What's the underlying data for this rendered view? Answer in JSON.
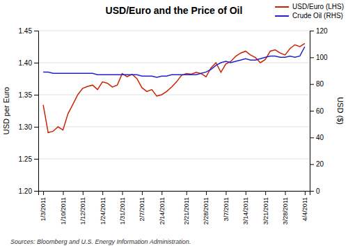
{
  "chart_data": {
    "type": "line",
    "title": "USD/Euro and the Price of Oil",
    "y_label": "USD per Euro",
    "y2_label": "USD ($)",
    "annotation": "Sources: Bloomberg and U.S. Energy Information Administration.",
    "categories": [
      "1/3/2011",
      null,
      null,
      null,
      "1/10/2011",
      null,
      null,
      null,
      "1/12/2011",
      null,
      null,
      null,
      "1/24/2011",
      null,
      null,
      null,
      "1/31/2011",
      null,
      null,
      null,
      "2/7/2011",
      null,
      null,
      null,
      "2/14/2011",
      null,
      null,
      null,
      null,
      "2/21/2011",
      null,
      null,
      null,
      "2/28/2011",
      null,
      null,
      null,
      "3/7/2011",
      null,
      null,
      null,
      "3/14/2011",
      null,
      null,
      null,
      "3/21/2011",
      null,
      null,
      null,
      "3/28/2011",
      null,
      null,
      null,
      "4/4/2011"
    ],
    "series": [
      {
        "name": "USD/Euro (LHS)",
        "color": "#cc2200",
        "axis": "y",
        "values": [
          1.334,
          1.291,
          1.293,
          1.3,
          1.295,
          1.32,
          1.335,
          1.35,
          1.36,
          1.363,
          1.365,
          1.358,
          1.37,
          1.368,
          1.362,
          1.365,
          1.383,
          1.378,
          1.382,
          1.375,
          1.361,
          1.355,
          1.358,
          1.348,
          1.35,
          1.355,
          1.362,
          1.37,
          1.38,
          1.383,
          1.382,
          1.385,
          1.383,
          1.378,
          1.392,
          1.4,
          1.385,
          1.398,
          1.402,
          1.41,
          1.415,
          1.418,
          1.412,
          1.408,
          1.4,
          1.405,
          1.418,
          1.42,
          1.415,
          1.412,
          1.422,
          1.428,
          1.425,
          1.43
        ]
      },
      {
        "name": "Crude Oil (RHS)",
        "color": "#2222cc",
        "axis": "y2",
        "values": [
          89,
          89,
          88,
          88,
          88,
          88,
          88,
          88,
          88,
          88,
          88,
          87,
          87,
          87,
          87,
          87,
          87,
          87,
          87,
          87,
          86,
          86,
          86,
          85,
          86,
          86,
          87,
          87,
          87,
          87,
          87,
          87,
          88,
          89,
          91,
          94,
          96,
          97,
          96,
          97,
          98,
          99,
          98,
          98,
          99,
          100,
          101,
          101,
          100,
          100,
          101,
          100,
          101,
          108
        ]
      }
    ],
    "ylim": [
      1.2,
      1.45
    ],
    "yticks": [
      {
        "value": 1.2,
        "label": "1.20"
      },
      1.25,
      {
        "value": 1.3,
        "label": "1.30"
      },
      1.35,
      {
        "value": 1.4,
        "label": "1.40"
      },
      1.45
    ],
    "y2lim": [
      0,
      120
    ],
    "y2ticks": [
      0,
      20,
      40,
      60,
      80,
      100,
      120
    ],
    "grid": true,
    "legend": "upper right"
  }
}
